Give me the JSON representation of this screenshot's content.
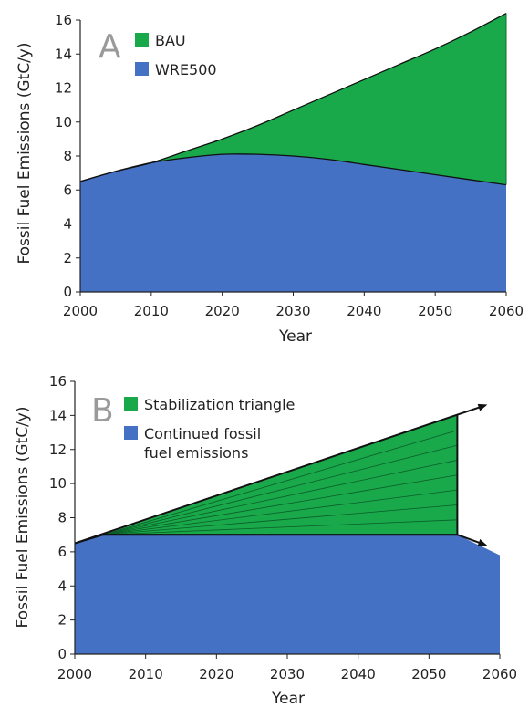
{
  "colors": {
    "green": "#19a84a",
    "blue": "#4571c4",
    "line": "#111111"
  },
  "chart_data": [
    {
      "type": "area",
      "panel_label": "A",
      "xlabel": "Year",
      "ylabel": "Fossil Fuel Emissions (GtC/y)",
      "xlim": [
        2000,
        2060
      ],
      "ylim": [
        0,
        16
      ],
      "xticks": [
        "2000",
        "2010",
        "2020",
        "2030",
        "2040",
        "2050",
        "2060"
      ],
      "yticks": [
        "0",
        "2",
        "4",
        "6",
        "8",
        "10",
        "12",
        "14",
        "16"
      ],
      "legend_position": "top-left",
      "x": [
        2000,
        2005,
        2010,
        2015,
        2020,
        2025,
        2030,
        2035,
        2040,
        2045,
        2050,
        2055,
        2060
      ],
      "series": [
        {
          "name": "BAU",
          "color": "#19a84a",
          "values": [
            6.5,
            7.1,
            7.6,
            8.3,
            9.0,
            9.8,
            10.7,
            11.6,
            12.5,
            13.4,
            14.3,
            15.3,
            16.4
          ]
        },
        {
          "name": "WRE500",
          "color": "#4571c4",
          "values": [
            6.5,
            7.1,
            7.6,
            7.9,
            8.1,
            8.1,
            8.0,
            7.8,
            7.5,
            7.2,
            6.9,
            6.6,
            6.3
          ]
        }
      ]
    },
    {
      "type": "area",
      "panel_label": "B",
      "xlabel": "Year",
      "ylabel": "Fossil Fuel Emissions (GtC/y)",
      "xlim": [
        2000,
        2060
      ],
      "ylim": [
        0,
        16
      ],
      "xticks": [
        "2000",
        "2010",
        "2020",
        "2030",
        "2040",
        "2050",
        "2060"
      ],
      "yticks": [
        "0",
        "2",
        "4",
        "6",
        "8",
        "10",
        "12",
        "14",
        "16"
      ],
      "legend_position": "top-left",
      "series": [
        {
          "name": "Stabilization triangle",
          "color": "#19a84a",
          "points": [
            [
              2004,
              7
            ],
            [
              2054,
              14
            ],
            [
              2054,
              7
            ]
          ]
        },
        {
          "name": "Continued fossil fuel emissions",
          "color": "#4571c4",
          "points": [
            [
              2000,
              6.5
            ],
            [
              2004,
              7
            ],
            [
              2054,
              7
            ],
            [
              2060,
              5.8
            ]
          ]
        }
      ],
      "wedge_lines_at_2054": [
        7.875,
        8.75,
        9.625,
        10.5,
        11.375,
        12.25,
        13.125
      ],
      "arrows": [
        {
          "from": [
            2000,
            6.5
          ],
          "to": [
            2058,
            14.6
          ]
        },
        {
          "from": [
            2054,
            7
          ],
          "to": [
            2058,
            6.4
          ]
        }
      ]
    }
  ]
}
